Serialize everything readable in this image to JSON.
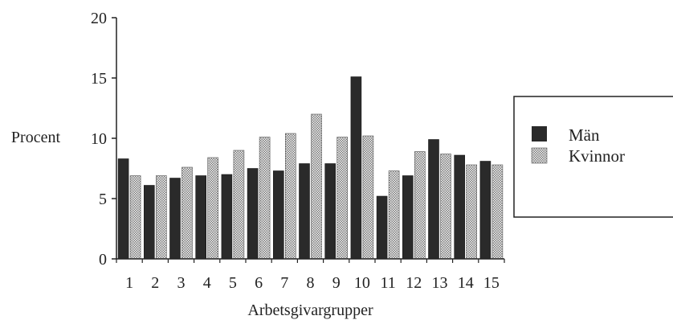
{
  "chart_data": {
    "type": "bar",
    "categories": [
      "1",
      "2",
      "3",
      "4",
      "5",
      "6",
      "7",
      "8",
      "9",
      "10",
      "11",
      "12",
      "13",
      "14",
      "15"
    ],
    "series": [
      {
        "name": "Män",
        "values": [
          8.3,
          6.1,
          6.7,
          6.9,
          7.0,
          7.5,
          7.3,
          7.9,
          7.9,
          15.1,
          5.2,
          6.9,
          9.9,
          8.6,
          8.1
        ]
      },
      {
        "name": "Kvinnor",
        "values": [
          6.9,
          6.9,
          7.6,
          8.4,
          9.0,
          10.1,
          10.4,
          12.0,
          10.1,
          10.2,
          7.3,
          8.9,
          8.7,
          7.8,
          7.8
        ]
      }
    ],
    "xlabel": "Arbetsgivargrupper",
    "ylabel": "Procent",
    "ylim": [
      0,
      20
    ],
    "yticks": [
      0,
      5,
      10,
      15,
      20
    ],
    "legend_position": "right",
    "grid": false,
    "colors": {
      "Män": "#2a2a2a",
      "Kvinnor": "#9a9a9a",
      "axis": "#222222"
    }
  }
}
